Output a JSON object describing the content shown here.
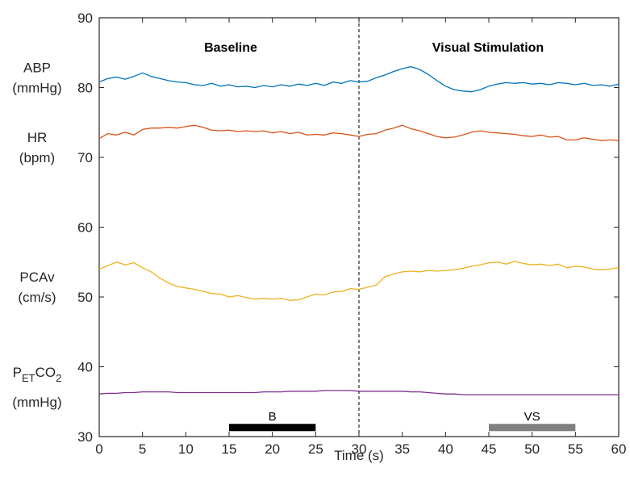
{
  "chart_data": {
    "type": "line",
    "xlabel": "Time (s)",
    "ylabel": "",
    "xlim": [
      0,
      60
    ],
    "ylim": [
      30,
      90
    ],
    "xticks": [
      0,
      5,
      10,
      15,
      20,
      25,
      30,
      35,
      40,
      45,
      50,
      55,
      60
    ],
    "yticks": [
      30,
      40,
      50,
      60,
      70,
      80,
      90
    ],
    "grid": false,
    "legend": "none",
    "phases": [
      {
        "label": "Baseline",
        "x": 15
      },
      {
        "label": "Visual Stimulation",
        "x": 45
      }
    ],
    "divider_x": 30,
    "periods": [
      {
        "label": "B",
        "start": 15,
        "end": 25,
        "y": 31.3,
        "color": "#000000"
      },
      {
        "label": "VS",
        "start": 45,
        "end": 55,
        "y": 31.3,
        "color": "#808080"
      }
    ],
    "side_labels": [
      {
        "lines": [
          "ABP",
          "(mmHg)"
        ],
        "y": 81.5
      },
      {
        "lines": [
          "HR",
          "(bpm)"
        ],
        "y": 71.5
      },
      {
        "lines": [
          "PCAv",
          "(cm/s)"
        ],
        "y": 51.5
      },
      {
        "lines": [
          "P",
          "ET",
          "CO",
          "2",
          "(mmHg)"
        ],
        "y": 37.5,
        "subscripted": true
      }
    ],
    "series": [
      {
        "color": "#0072BD",
        "x": [
          0,
          1,
          2,
          3,
          4,
          5,
          6,
          7,
          8,
          9,
          10,
          11,
          12,
          13,
          14,
          15,
          16,
          17,
          18,
          19,
          20,
          21,
          22,
          23,
          24,
          25,
          26,
          27,
          28,
          29,
          30,
          31,
          32,
          33,
          34,
          35,
          36,
          37,
          38,
          39,
          40,
          41,
          42,
          43,
          44,
          45,
          46,
          47,
          48,
          49,
          50,
          51,
          52,
          53,
          54,
          55,
          56,
          57,
          58,
          59,
          60
        ],
        "y": [
          80.8,
          81.3,
          81.5,
          81.2,
          81.6,
          82.1,
          81.6,
          81.3,
          81.0,
          80.8,
          80.7,
          80.4,
          80.3,
          80.6,
          80.2,
          80.4,
          80.1,
          80.2,
          80.0,
          80.3,
          80.1,
          80.4,
          80.2,
          80.5,
          80.3,
          80.6,
          80.3,
          80.8,
          80.6,
          81.0,
          80.8,
          80.9,
          81.4,
          81.8,
          82.3,
          82.7,
          83.0,
          82.6,
          81.9,
          81.0,
          80.2,
          79.7,
          79.5,
          79.4,
          79.7,
          80.2,
          80.5,
          80.7,
          80.6,
          80.7,
          80.5,
          80.6,
          80.4,
          80.7,
          80.6,
          80.4,
          80.6,
          80.3,
          80.4,
          80.2,
          80.5
        ]
      },
      {
        "color": "#D95319",
        "x": [
          0,
          1,
          2,
          3,
          4,
          5,
          6,
          7,
          8,
          9,
          10,
          11,
          12,
          13,
          14,
          15,
          16,
          17,
          18,
          19,
          20,
          21,
          22,
          23,
          24,
          25,
          26,
          27,
          28,
          29,
          30,
          31,
          32,
          33,
          34,
          35,
          36,
          37,
          38,
          39,
          40,
          41,
          42,
          43,
          44,
          45,
          46,
          47,
          48,
          49,
          50,
          51,
          52,
          53,
          54,
          55,
          56,
          57,
          58,
          59,
          60
        ],
        "y": [
          72.7,
          73.4,
          73.2,
          73.6,
          73.2,
          74.0,
          74.2,
          74.2,
          74.3,
          74.2,
          74.4,
          74.6,
          74.3,
          73.9,
          73.8,
          73.9,
          73.7,
          73.8,
          73.7,
          73.8,
          73.5,
          73.7,
          73.4,
          73.6,
          73.2,
          73.3,
          73.2,
          73.5,
          73.4,
          73.2,
          73.0,
          73.3,
          73.4,
          73.9,
          74.2,
          74.6,
          74.1,
          73.8,
          73.4,
          73.0,
          72.8,
          72.9,
          73.2,
          73.6,
          73.8,
          73.6,
          73.5,
          73.4,
          73.3,
          73.1,
          73.0,
          73.2,
          72.9,
          73.0,
          72.5,
          72.5,
          72.8,
          72.6,
          72.4,
          72.5,
          72.4
        ]
      },
      {
        "color": "#EDB120",
        "x": [
          0,
          1,
          2,
          3,
          4,
          5,
          6,
          7,
          8,
          9,
          10,
          11,
          12,
          13,
          14,
          15,
          16,
          17,
          18,
          19,
          20,
          21,
          22,
          23,
          24,
          25,
          26,
          27,
          28,
          29,
          30,
          31,
          32,
          33,
          34,
          35,
          36,
          37,
          38,
          39,
          40,
          41,
          42,
          43,
          44,
          45,
          46,
          47,
          48,
          49,
          50,
          51,
          52,
          53,
          54,
          55,
          56,
          57,
          58,
          59,
          60
        ],
        "y": [
          54.0,
          54.5,
          55.0,
          54.6,
          54.9,
          54.2,
          53.6,
          52.7,
          52.0,
          51.5,
          51.3,
          51.1,
          50.8,
          50.5,
          50.4,
          50.0,
          50.2,
          49.9,
          49.7,
          49.8,
          49.7,
          49.8,
          49.5,
          49.6,
          50.0,
          50.4,
          50.3,
          50.7,
          50.8,
          51.2,
          51.1,
          51.4,
          51.7,
          52.9,
          53.3,
          53.6,
          53.7,
          53.6,
          53.8,
          53.7,
          53.8,
          53.9,
          54.1,
          54.4,
          54.6,
          54.9,
          55.0,
          54.7,
          55.1,
          54.8,
          54.6,
          54.7,
          54.5,
          54.7,
          54.2,
          54.4,
          54.3,
          54.0,
          53.9,
          54.0,
          54.2
        ]
      },
      {
        "color": "#7E2F8E",
        "x": [
          0,
          1,
          2,
          3,
          4,
          5,
          6,
          7,
          8,
          9,
          10,
          11,
          12,
          13,
          14,
          15,
          16,
          17,
          18,
          19,
          20,
          21,
          22,
          23,
          24,
          25,
          26,
          27,
          28,
          29,
          30,
          31,
          32,
          33,
          34,
          35,
          36,
          37,
          38,
          39,
          40,
          41,
          42,
          43,
          44,
          45,
          46,
          47,
          48,
          49,
          50,
          51,
          52,
          53,
          54,
          55,
          56,
          57,
          58,
          59,
          60
        ],
        "y": [
          36.1,
          36.2,
          36.2,
          36.3,
          36.3,
          36.4,
          36.4,
          36.4,
          36.4,
          36.3,
          36.3,
          36.3,
          36.3,
          36.3,
          36.3,
          36.3,
          36.3,
          36.3,
          36.3,
          36.4,
          36.4,
          36.4,
          36.5,
          36.5,
          36.5,
          36.5,
          36.6,
          36.6,
          36.6,
          36.6,
          36.5,
          36.5,
          36.5,
          36.5,
          36.5,
          36.5,
          36.4,
          36.4,
          36.3,
          36.2,
          36.1,
          36.1,
          36.0,
          36.0,
          36.0,
          36.0,
          36.0,
          36.0,
          36.0,
          36.0,
          36.0,
          36.0,
          36.0,
          36.0,
          36.0,
          36.0,
          36.0,
          36.0,
          36.0,
          36.0,
          36.0
        ]
      }
    ]
  }
}
